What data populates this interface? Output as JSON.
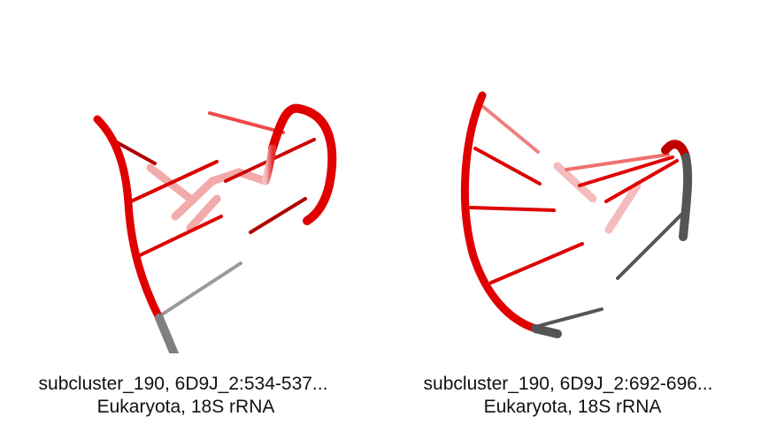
{
  "panels": [
    {
      "caption_line1": "subcluster_190, 6D9J_2:534-537...",
      "caption_line2": "Eukaryota, 18S rRNA",
      "colors": {
        "strand": "#e00000",
        "strand_dark": "#9c0000",
        "tail": "#888888",
        "faded": "#f0a0a0"
      }
    },
    {
      "caption_line1": "subcluster_190, 6D9J_2:692-696...",
      "caption_line2": "Eukaryota, 18S rRNA",
      "colors": {
        "strand": "#e00000",
        "strand_dark": "#9c0000",
        "tail": "#555555",
        "faded": "#f0a0a0"
      }
    }
  ]
}
